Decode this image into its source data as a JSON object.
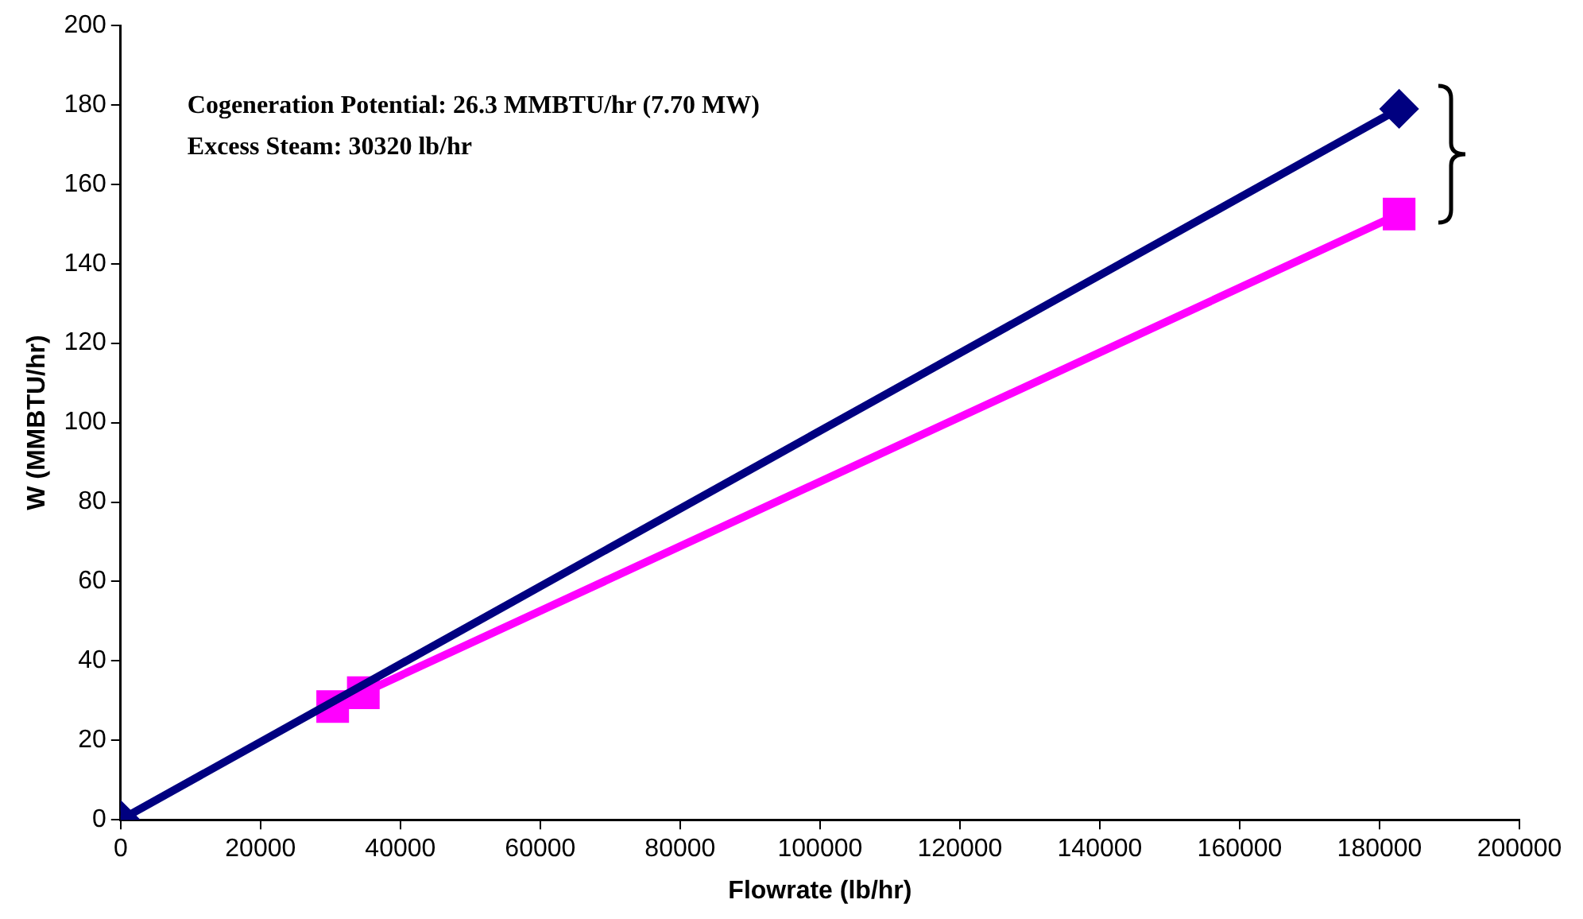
{
  "chart_data": {
    "type": "line",
    "xlabel": "Flowrate (lb/hr)",
    "ylabel": "W (MMBTU/hr)",
    "annotations": [
      "Cogeneration Potential: 26.3 MMBTU/hr (7.70 MW)",
      "Excess Steam: 30320 lb/hr"
    ],
    "series": [
      {
        "color": "#000080",
        "marker": "diamond",
        "x": [
          0,
          182800
        ],
        "values": [
          0,
          179
        ]
      },
      {
        "color": "#ff00ff",
        "marker": "square",
        "x": [
          30320,
          34700,
          182800
        ],
        "values": [
          28.5,
          32,
          152.5
        ]
      }
    ],
    "xlim": [
      0,
      200000
    ],
    "xticks": [
      0,
      20000,
      40000,
      60000,
      80000,
      100000,
      120000,
      140000,
      160000,
      180000,
      200000
    ],
    "ylim": [
      0,
      200
    ],
    "yticks": [
      0,
      20,
      40,
      60,
      80,
      100,
      120,
      140,
      160,
      180,
      200
    ],
    "grid": false,
    "legend": false,
    "line_style": "solid"
  }
}
